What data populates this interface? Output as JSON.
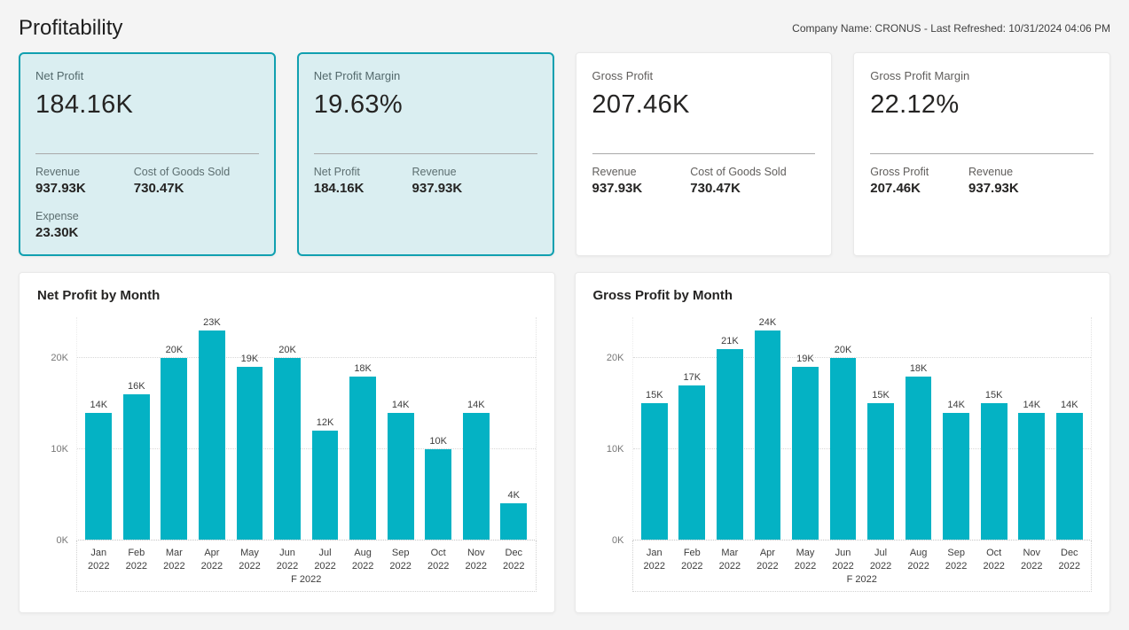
{
  "page": {
    "title": "Profitability",
    "header_info": "Company Name: CRONUS - Last Refreshed: 10/31/2024 04:06 PM"
  },
  "theme": {
    "accent": "#04B2C4",
    "highlight_card_bg": "#DAEEF1",
    "highlight_card_border": "#10A0B0",
    "page_bg": "#F4F4F4"
  },
  "kpi_cards": [
    {
      "label": "Net Profit",
      "value": "184.16K",
      "highlighted": true,
      "details": [
        {
          "label": "Revenue",
          "value": "937.93K"
        },
        {
          "label": "Cost of Goods Sold",
          "value": "730.47K"
        },
        {
          "label": "Expense",
          "value": "23.30K"
        }
      ]
    },
    {
      "label": "Net Profit Margin",
      "value": "19.63%",
      "highlighted": true,
      "details": [
        {
          "label": "Net Profit",
          "value": "184.16K"
        },
        {
          "label": "Revenue",
          "value": "937.93K"
        }
      ]
    },
    {
      "label": "Gross Profit",
      "value": "207.46K",
      "highlighted": false,
      "details": [
        {
          "label": "Revenue",
          "value": "937.93K"
        },
        {
          "label": "Cost of Goods Sold",
          "value": "730.47K"
        }
      ]
    },
    {
      "label": "Gross Profit Margin",
      "value": "22.12%",
      "highlighted": false,
      "details": [
        {
          "label": "Gross Profit",
          "value": "207.46K"
        },
        {
          "label": "Revenue",
          "value": "937.93K"
        }
      ]
    }
  ],
  "chart_data": [
    {
      "type": "bar",
      "title": "Net Profit by Month",
      "categories": [
        "Jan 2022",
        "Feb 2022",
        "Mar 2022",
        "Apr 2022",
        "May 2022",
        "Jun 2022",
        "Jul 2022",
        "Aug 2022",
        "Sep 2022",
        "Oct 2022",
        "Nov 2022",
        "Dec 2022"
      ],
      "values": [
        14,
        16,
        20,
        23,
        19,
        20,
        12,
        18,
        14,
        10,
        14,
        4
      ],
      "data_labels": [
        "14K",
        "16K",
        "20K",
        "23K",
        "19K",
        "20K",
        "12K",
        "18K",
        "14K",
        "10K",
        "14K",
        "4K"
      ],
      "unit": "K",
      "xlabel": "F 2022",
      "ylabel": "",
      "y_ticks": [
        {
          "value": 0,
          "label": "0K"
        },
        {
          "value": 10,
          "label": "10K"
        },
        {
          "value": 20,
          "label": "20K"
        }
      ],
      "ylim": [
        0,
        24.5
      ],
      "grid": true,
      "legend": false,
      "bar_color": "#04B2C4"
    },
    {
      "type": "bar",
      "title": "Gross Profit by Month",
      "categories": [
        "Jan 2022",
        "Feb 2022",
        "Mar 2022",
        "Apr 2022",
        "May 2022",
        "Jun 2022",
        "Jul 2022",
        "Aug 2022",
        "Sep 2022",
        "Oct 2022",
        "Nov 2022",
        "Dec 2022"
      ],
      "values": [
        15,
        17,
        21,
        24,
        19,
        20,
        15,
        18,
        14,
        15,
        14,
        14
      ],
      "data_labels": [
        "15K",
        "17K",
        "21K",
        "24K",
        "19K",
        "20K",
        "15K",
        "18K",
        "14K",
        "15K",
        "14K",
        "14K"
      ],
      "unit": "K",
      "xlabel": "F 2022",
      "ylabel": "",
      "y_ticks": [
        {
          "value": 0,
          "label": "0K"
        },
        {
          "value": 10,
          "label": "10K"
        },
        {
          "value": 20,
          "label": "20K"
        }
      ],
      "ylim": [
        0,
        24.5
      ],
      "grid": true,
      "legend": false,
      "bar_color": "#04B2C4"
    }
  ]
}
